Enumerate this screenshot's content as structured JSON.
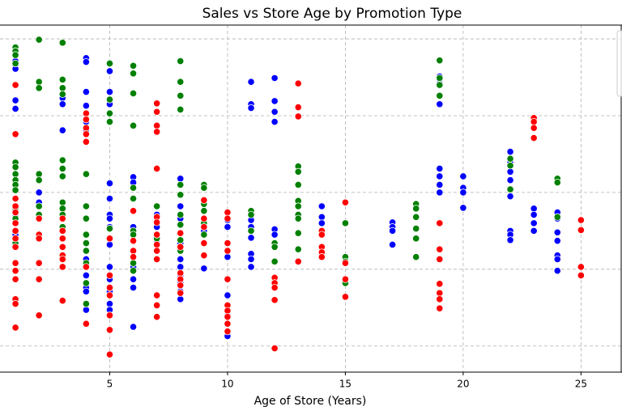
{
  "chart_data": {
    "type": "scatter",
    "title": "Sales vs Store Age by Promotion Type",
    "x_label": "Age of Store (Years)",
    "xlim": [
      0.344,
      26.74
    ],
    "ylim": [
      -34,
      418
    ],
    "xticks": [
      5,
      10,
      15,
      20,
      25
    ],
    "yticks": [
      0,
      100,
      200,
      300,
      400
    ],
    "show_ytick_labels": false,
    "grid": true,
    "series": [
      {
        "color": "#0000ff",
        "x": [
          1,
          1,
          1,
          1,
          1,
          1,
          1,
          1,
          1,
          2,
          2,
          2,
          2,
          3,
          3,
          3,
          4,
          4,
          4,
          4,
          4,
          4,
          4,
          4,
          4,
          4,
          4,
          4,
          4,
          4,
          5,
          5,
          5,
          5,
          5,
          5,
          5,
          5,
          5,
          5,
          5,
          5,
          5,
          5,
          6,
          6,
          6,
          6,
          6,
          6,
          6,
          7,
          7,
          7,
          7,
          7,
          8,
          8,
          8,
          8,
          8,
          8,
          8,
          8,
          8,
          8,
          8,
          9,
          9,
          9,
          9,
          9,
          10,
          10,
          10,
          10,
          10,
          10,
          10,
          10,
          10,
          11,
          11,
          11,
          11,
          11,
          11,
          11,
          11,
          11,
          11,
          12,
          12,
          12,
          12,
          12,
          12,
          14,
          14,
          14,
          17,
          17,
          17,
          17,
          19,
          19,
          19,
          19,
          19,
          19,
          19,
          19,
          20,
          20,
          20,
          20,
          22,
          22,
          22,
          22,
          22,
          22,
          22,
          22,
          23,
          23,
          23,
          23,
          24,
          24,
          24,
          24,
          24,
          24,
          24
        ],
        "values": [
          371,
          366,
          361,
          340,
          320,
          309,
          168,
          161,
          145,
          200,
          187,
          171,
          168,
          323,
          315,
          281,
          375,
          370,
          331,
          313,
          303,
          292,
          281,
          113,
          103,
          92,
          82,
          76,
          71,
          47,
          358,
          331,
          315,
          212,
          192,
          171,
          166,
          155,
          132,
          103,
          87,
          71,
          55,
          47,
          220,
          213,
          155,
          103,
          87,
          76,
          25,
          182,
          171,
          155,
          134,
          113,
          218,
          210,
          182,
          166,
          134,
          113,
          103,
          92,
          82,
          71,
          61,
          208,
          176,
          150,
          134,
          101,
          164,
          155,
          134,
          116,
          66,
          40,
          29,
          19,
          13,
          344,
          315,
          310,
          174,
          164,
          155,
          141,
          120,
          113,
          103,
          349,
          319,
          305,
          292,
          152,
          145,
          182,
          168,
          160,
          161,
          155,
          150,
          132,
          351,
          347,
          342,
          315,
          231,
          221,
          210,
          200,
          221,
          206,
          200,
          180,
          253,
          239,
          227,
          216,
          195,
          150,
          145,
          138,
          179,
          171,
          160,
          150,
          174,
          166,
          148,
          137,
          118,
          113,
          98
        ]
      },
      {
        "color": "#008000",
        "x": [
          1,
          1,
          1,
          1,
          1,
          1,
          1,
          1,
          1,
          1,
          1,
          1,
          1,
          1,
          1,
          2,
          2,
          2,
          2,
          2,
          2,
          2,
          3,
          3,
          3,
          3,
          3,
          3,
          3,
          3,
          3,
          3,
          3,
          4,
          4,
          4,
          4,
          4,
          4,
          4,
          4,
          4,
          5,
          5,
          5,
          5,
          5,
          6,
          6,
          6,
          6,
          6,
          6,
          6,
          6,
          6,
          6,
          7,
          7,
          7,
          8,
          8,
          8,
          8,
          8,
          8,
          8,
          8,
          8,
          8,
          9,
          9,
          9,
          9,
          9,
          9,
          11,
          11,
          11,
          12,
          12,
          12,
          12,
          13,
          13,
          13,
          13,
          13,
          13,
          13,
          13,
          13,
          15,
          15,
          15,
          15,
          18,
          18,
          18,
          18,
          18,
          18,
          19,
          19,
          19,
          19,
          22,
          22,
          22,
          24,
          24,
          24
        ],
        "values": [
          389,
          384,
          379,
          368,
          239,
          233,
          224,
          216,
          210,
          203,
          192,
          179,
          166,
          150,
          134,
          399,
          344,
          336,
          224,
          216,
          182,
          171,
          395,
          347,
          336,
          328,
          242,
          231,
          221,
          187,
          179,
          171,
          155,
          224,
          182,
          166,
          145,
          134,
          124,
          108,
          82,
          55,
          368,
          321,
          303,
          292,
          153,
          365,
          355,
          329,
          287,
          206,
          192,
          150,
          145,
          108,
          98,
          182,
          140,
          124,
          371,
          344,
          326,
          308,
          210,
          197,
          171,
          158,
          138,
          124,
          210,
          206,
          185,
          176,
          160,
          145,
          176,
          171,
          150,
          134,
          129,
          110,
          87,
          234,
          227,
          210,
          189,
          182,
          171,
          166,
          147,
          126,
          160,
          116,
          110,
          82,
          185,
          179,
          168,
          153,
          140,
          116,
          372,
          349,
          340,
          326,
          244,
          235,
          204,
          218,
          213,
          168
        ]
      },
      {
        "color": "#ff0000",
        "x": [
          1,
          1,
          1,
          1,
          1,
          1,
          1,
          1,
          1,
          1,
          1,
          1,
          1,
          1,
          1,
          2,
          2,
          2,
          2,
          2,
          2,
          3,
          3,
          3,
          3,
          3,
          3,
          3,
          3,
          4,
          4,
          4,
          4,
          4,
          4,
          4,
          5,
          5,
          5,
          5,
          5,
          5,
          5,
          6,
          6,
          6,
          6,
          7,
          7,
          7,
          7,
          7,
          7,
          7,
          7,
          7,
          7,
          7,
          7,
          7,
          7,
          8,
          8,
          8,
          8,
          8,
          8,
          9,
          9,
          9,
          9,
          9,
          10,
          10,
          10,
          10,
          10,
          10,
          10,
          10,
          10,
          10,
          12,
          12,
          12,
          12,
          12,
          13,
          13,
          13,
          13,
          14,
          14,
          14,
          14,
          14,
          15,
          15,
          15,
          15,
          19,
          19,
          19,
          19,
          19,
          19,
          19,
          23,
          23,
          23,
          23,
          25,
          25,
          25,
          25
        ],
        "values": [
          340,
          276,
          192,
          182,
          174,
          160,
          150,
          140,
          129,
          108,
          98,
          87,
          61,
          55,
          24,
          166,
          145,
          140,
          108,
          87,
          40,
          166,
          150,
          140,
          129,
          118,
          113,
          103,
          59,
          303,
          295,
          284,
          276,
          266,
          103,
          29,
          140,
          92,
          76,
          66,
          40,
          21,
          -11,
          176,
          137,
          124,
          116,
          316,
          305,
          287,
          279,
          231,
          168,
          161,
          145,
          132,
          124,
          113,
          66,
          53,
          38,
          147,
          129,
          95,
          87,
          79,
          69,
          190,
          166,
          155,
          134,
          118,
          174,
          166,
          134,
          124,
          87,
          53,
          46,
          38,
          29,
          19,
          89,
          82,
          76,
          60,
          -3,
          342,
          311,
          299,
          110,
          150,
          145,
          129,
          122,
          116,
          187,
          108,
          87,
          64,
          160,
          126,
          113,
          81,
          69,
          61,
          49,
          297,
          292,
          284,
          271,
          164,
          151,
          103,
          92
        ]
      }
    ]
  }
}
